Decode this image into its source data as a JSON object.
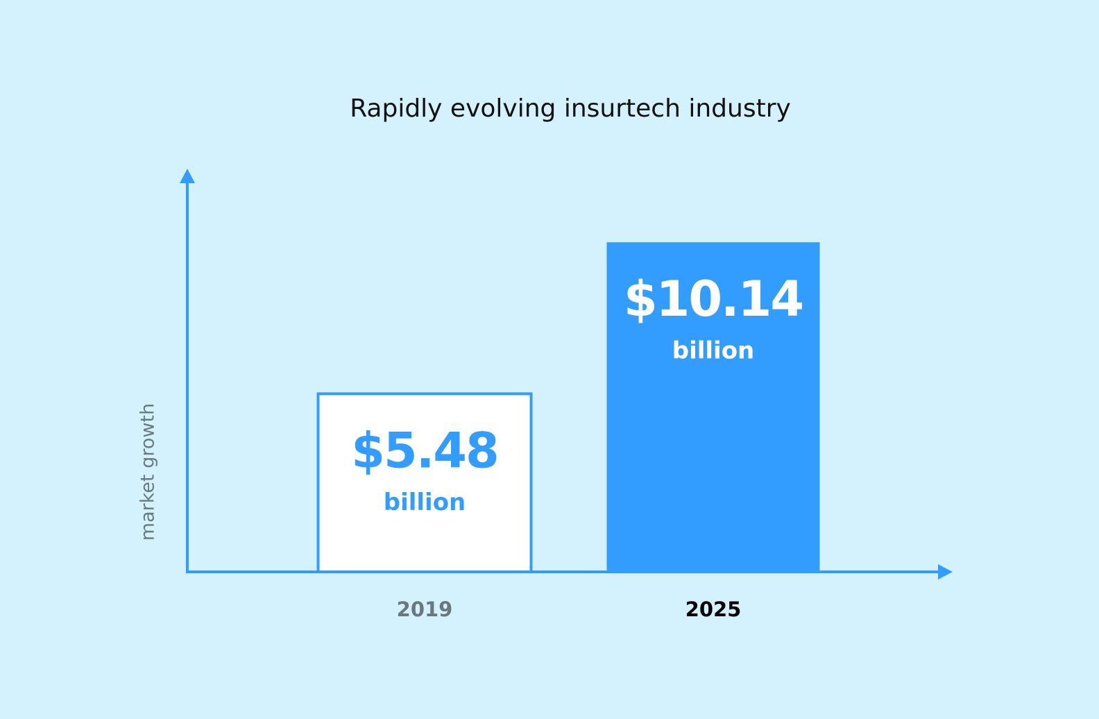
{
  "chart_data": {
    "type": "bar",
    "title": "Rapidly evolving insurtech industry",
    "y_label": "market growth",
    "categories": [
      "2019",
      "2025"
    ],
    "values": [
      5.48,
      10.14
    ],
    "value_labels": [
      "$5.48",
      "$10.14"
    ],
    "value_unit": "billion",
    "colors": [
      "#ffffff",
      "#339dff"
    ],
    "ylim": [
      0,
      12
    ]
  }
}
